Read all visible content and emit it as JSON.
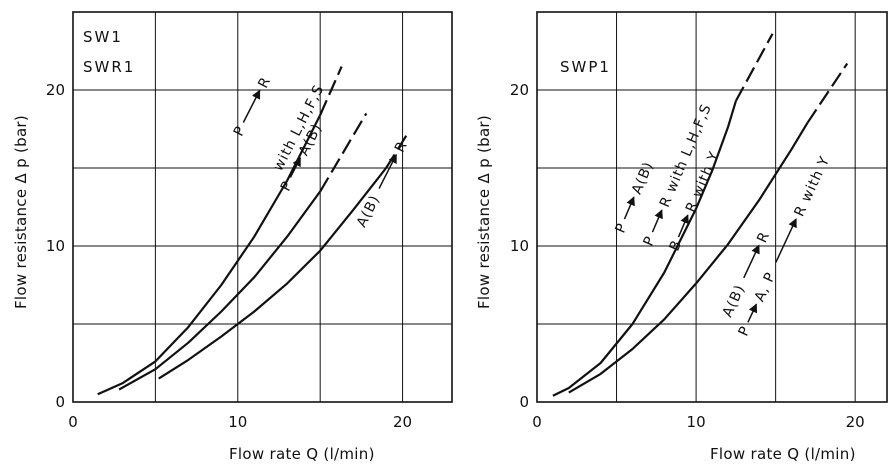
{
  "chart_data": [
    {
      "type": "line",
      "panel_labels": [
        "SW1",
        "SWR1"
      ],
      "xlabel": "Flow rate Q (l/min)",
      "ylabel": "Flow resistance Δ p (bar)",
      "xlim": [
        0,
        23
      ],
      "ylim": [
        0,
        25
      ],
      "xticks": [
        0,
        10,
        20
      ],
      "yticks": [
        0,
        10,
        20
      ],
      "grid": true,
      "series": [
        {
          "annotation": "P→R with L,H,F,S",
          "points": [
            [
              1.5,
              0.5
            ],
            [
              3,
              1.2
            ],
            [
              5,
              2.6
            ],
            [
              7,
              4.8
            ],
            [
              9,
              7.5
            ],
            [
              11,
              10.6
            ],
            [
              13,
              14.2
            ],
            [
              15,
              18.4
            ]
          ],
          "dashed_points": [
            [
              15,
              18.4
            ],
            [
              16.3,
              21.5
            ]
          ]
        },
        {
          "annotation": "P→A(B)",
          "points": [
            [
              2.8,
              0.8
            ],
            [
              5,
              2.1
            ],
            [
              7,
              3.8
            ],
            [
              9,
              5.8
            ],
            [
              11,
              8.0
            ],
            [
              13,
              10.6
            ],
            [
              15,
              13.5
            ]
          ],
          "dashed_points": [
            [
              15,
              13.5
            ],
            [
              17.8,
              18.5
            ]
          ]
        },
        {
          "annotation": "A(B)→R",
          "points": [
            [
              5.2,
              1.5
            ],
            [
              7,
              2.7
            ],
            [
              9,
              4.2
            ],
            [
              11,
              5.8
            ],
            [
              13,
              7.6
            ],
            [
              15,
              9.7
            ],
            [
              17,
              12.3
            ],
            [
              19,
              15.0
            ]
          ],
          "dashed_points": [
            [
              19,
              15.0
            ],
            [
              20.3,
              17.2
            ]
          ]
        }
      ]
    },
    {
      "type": "line",
      "panel_labels": [
        "SWP1"
      ],
      "xlabel": "Flow rate Q (l/min)",
      "ylabel": "Flow resistance Δ p (bar)",
      "xlim": [
        0,
        22
      ],
      "ylim": [
        0,
        25
      ],
      "xticks": [
        0,
        10,
        20
      ],
      "yticks": [
        0,
        10,
        20
      ],
      "grid": true,
      "series": [
        {
          "annotation": "P→A(B) P→R with L,H,F,S B→R with Y",
          "points": [
            [
              1,
              0.4
            ],
            [
              2,
              0.9
            ],
            [
              4,
              2.5
            ],
            [
              6,
              5.0
            ],
            [
              8,
              8.3
            ],
            [
              10,
              12.4
            ],
            [
              11,
              14.8
            ],
            [
              12,
              17.6
            ],
            [
              12.5,
              19.3
            ]
          ],
          "dashed_points": [
            [
              12.5,
              19.3
            ],
            [
              14.8,
              23.6
            ]
          ]
        },
        {
          "annotation": "A(B)→R P→A, P→R with Y",
          "points": [
            [
              2,
              0.6
            ],
            [
              4,
              1.8
            ],
            [
              6,
              3.4
            ],
            [
              8,
              5.3
            ],
            [
              10,
              7.6
            ],
            [
              12,
              10.1
            ],
            [
              14,
              13.0
            ],
            [
              16,
              16.2
            ],
            [
              17,
              17.9
            ]
          ],
          "dashed_points": [
            [
              17,
              17.9
            ],
            [
              19.5,
              21.7
            ]
          ]
        }
      ]
    }
  ]
}
